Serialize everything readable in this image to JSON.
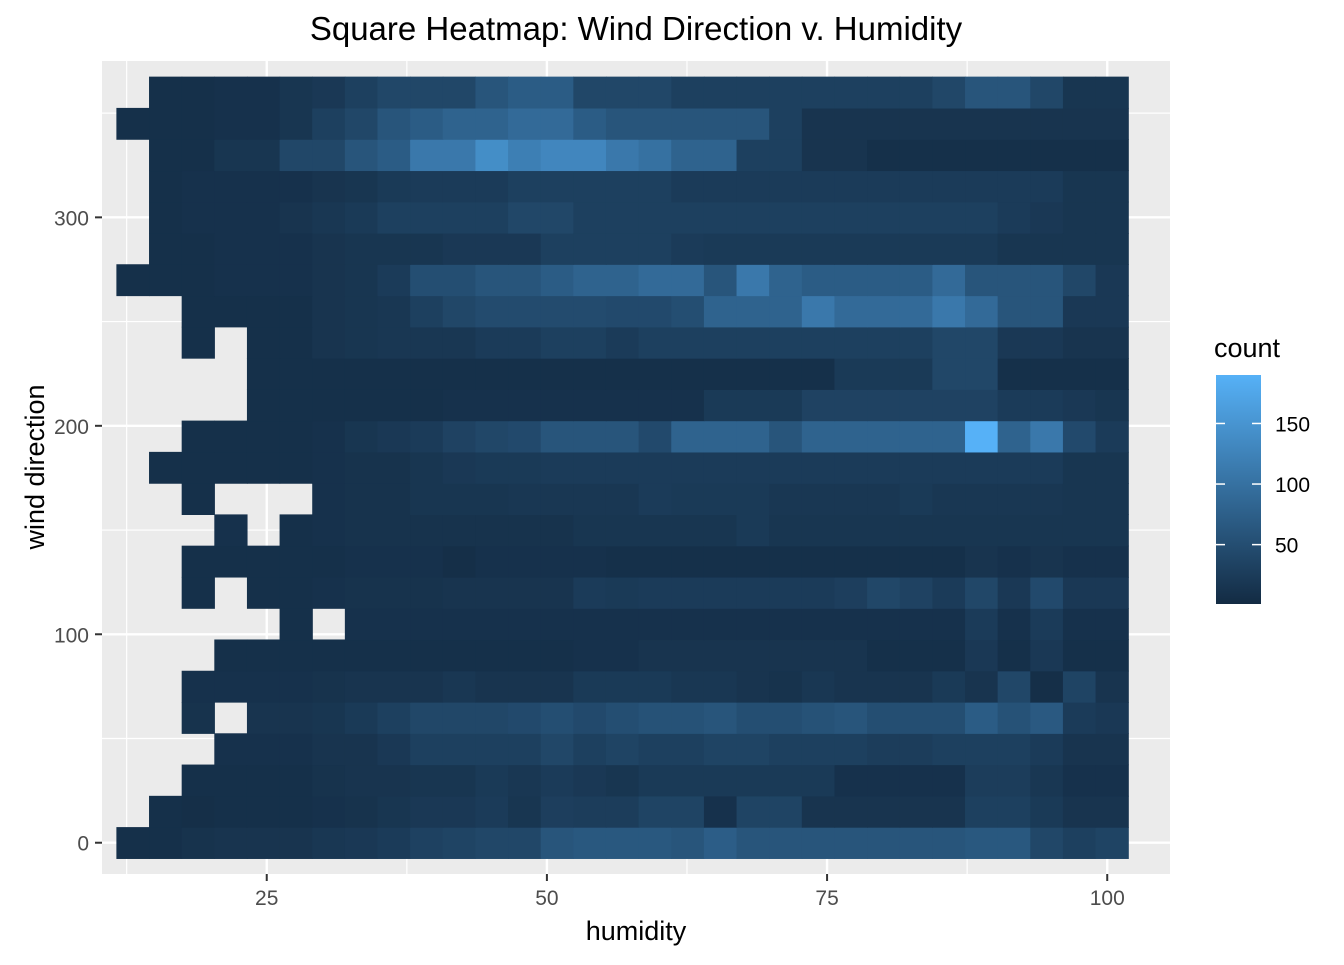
{
  "chart_data": {
    "type": "heatmap",
    "title": "Square Heatmap: Wind Direction v. Humidity",
    "xlabel": "humidity",
    "ylabel": "wind direction",
    "x_ticks": [
      25,
      50,
      75,
      100
    ],
    "y_ticks": [
      0,
      100,
      200,
      300
    ],
    "xlim": [
      10.3,
      105.6
    ],
    "ylim": [
      -15,
      375
    ],
    "x_bins": {
      "first_center": 13.04,
      "width": 2.9125,
      "count": 31
    },
    "y_bins": {
      "first_center": 0,
      "width": 15,
      "count": 25
    },
    "legend": {
      "title": "count",
      "ticks": [
        50,
        100,
        150
      ],
      "range": [
        1,
        190
      ],
      "low_color": "#132B43",
      "high_color": "#56B1F7",
      "position": "right"
    },
    "grid": true,
    "panel_background": "#EBEBEB",
    "rows": [
      [
        8,
        8,
        12,
        14,
        14,
        14,
        18,
        20,
        24,
        32,
        36,
        40,
        40,
        60,
        64,
        64,
        64,
        60,
        72,
        60,
        60,
        60,
        60,
        60,
        60,
        60,
        64,
        64,
        40,
        30,
        36
      ],
      [
        null,
        8,
        6,
        8,
        8,
        8,
        10,
        12,
        16,
        20,
        20,
        24,
        16,
        28,
        26,
        26,
        36,
        36,
        10,
        36,
        36,
        14,
        14,
        14,
        14,
        14,
        30,
        30,
        22,
        14,
        14
      ],
      [
        null,
        null,
        8,
        8,
        8,
        8,
        12,
        14,
        14,
        16,
        16,
        22,
        18,
        24,
        20,
        16,
        22,
        22,
        22,
        22,
        22,
        22,
        10,
        10,
        10,
        10,
        26,
        26,
        18,
        10,
        10
      ],
      [
        null,
        null,
        null,
        10,
        10,
        10,
        14,
        14,
        20,
        30,
        30,
        30,
        30,
        40,
        30,
        36,
        30,
        30,
        36,
        36,
        30,
        30,
        30,
        26,
        26,
        30,
        30,
        30,
        24,
        14,
        14
      ],
      [
        null,
        null,
        12,
        null,
        14,
        14,
        16,
        22,
        30,
        40,
        40,
        40,
        44,
        50,
        44,
        50,
        56,
        56,
        60,
        50,
        50,
        56,
        60,
        50,
        50,
        50,
        70,
        56,
        66,
        24,
        20
      ],
      [
        null,
        null,
        10,
        10,
        10,
        10,
        12,
        14,
        14,
        14,
        18,
        14,
        14,
        14,
        22,
        22,
        22,
        18,
        18,
        14,
        12,
        18,
        14,
        14,
        14,
        22,
        14,
        40,
        6,
        36,
        14
      ],
      [
        null,
        null,
        null,
        8,
        8,
        8,
        8,
        8,
        8,
        8,
        8,
        8,
        8,
        8,
        10,
        10,
        14,
        14,
        14,
        14,
        14,
        14,
        14,
        8,
        8,
        8,
        20,
        8,
        20,
        8,
        8
      ],
      [
        null,
        null,
        null,
        null,
        null,
        8,
        null,
        10,
        10,
        10,
        10,
        10,
        10,
        10,
        10,
        10,
        10,
        10,
        10,
        10,
        10,
        10,
        10,
        10,
        10,
        10,
        24,
        10,
        24,
        10,
        10
      ],
      [
        null,
        null,
        8,
        null,
        8,
        8,
        10,
        12,
        12,
        12,
        14,
        14,
        14,
        14,
        24,
        22,
        24,
        24,
        24,
        24,
        24,
        24,
        28,
        40,
        34,
        24,
        40,
        20,
        44,
        20,
        20
      ],
      [
        null,
        null,
        8,
        8,
        8,
        8,
        8,
        10,
        10,
        10,
        6,
        10,
        10,
        10,
        10,
        8,
        8,
        8,
        8,
        8,
        8,
        8,
        8,
        8,
        8,
        8,
        14,
        10,
        14,
        10,
        10
      ],
      [
        null,
        null,
        null,
        10,
        null,
        8,
        10,
        12,
        12,
        12,
        12,
        12,
        12,
        12,
        16,
        16,
        16,
        16,
        16,
        22,
        16,
        16,
        16,
        16,
        16,
        16,
        16,
        16,
        16,
        16,
        16
      ],
      [
        null,
        null,
        8,
        null,
        null,
        null,
        10,
        12,
        12,
        16,
        16,
        16,
        18,
        18,
        18,
        18,
        24,
        22,
        22,
        22,
        18,
        18,
        18,
        18,
        22,
        18,
        18,
        18,
        18,
        16,
        16
      ],
      [
        null,
        8,
        8,
        8,
        8,
        8,
        10,
        12,
        12,
        16,
        20,
        22,
        22,
        24,
        24,
        24,
        24,
        24,
        24,
        24,
        24,
        24,
        24,
        24,
        24,
        24,
        24,
        24,
        24,
        16,
        16
      ],
      [
        null,
        null,
        8,
        8,
        8,
        8,
        10,
        16,
        20,
        24,
        34,
        40,
        44,
        60,
        60,
        60,
        44,
        80,
        80,
        80,
        60,
        80,
        80,
        80,
        80,
        80,
        190,
        80,
        110,
        44,
        24
      ],
      [
        null,
        null,
        null,
        null,
        8,
        8,
        8,
        8,
        8,
        8,
        10,
        10,
        10,
        10,
        10,
        10,
        10,
        10,
        22,
        22,
        22,
        34,
        34,
        34,
        34,
        34,
        34,
        24,
        24,
        20,
        16
      ],
      [
        null,
        null,
        null,
        null,
        8,
        8,
        8,
        8,
        8,
        8,
        8,
        8,
        8,
        8,
        8,
        8,
        8,
        8,
        8,
        8,
        8,
        8,
        22,
        22,
        22,
        40,
        40,
        8,
        8,
        8,
        8
      ],
      [
        null,
        null,
        8,
        null,
        8,
        8,
        14,
        16,
        18,
        18,
        18,
        24,
        24,
        30,
        30,
        24,
        30,
        30,
        30,
        30,
        30,
        30,
        30,
        30,
        30,
        40,
        40,
        20,
        20,
        14,
        14
      ],
      [
        null,
        null,
        8,
        8,
        8,
        8,
        14,
        16,
        18,
        30,
        40,
        46,
        46,
        46,
        46,
        44,
        44,
        50,
        80,
        80,
        80,
        110,
        90,
        90,
        90,
        110,
        90,
        60,
        60,
        20,
        20
      ],
      [
        8,
        8,
        8,
        10,
        10,
        10,
        14,
        16,
        24,
        50,
        50,
        60,
        60,
        70,
        80,
        80,
        90,
        90,
        60,
        110,
        80,
        70,
        70,
        70,
        70,
        90,
        60,
        60,
        60,
        40,
        20
      ],
      [
        null,
        8,
        8,
        10,
        10,
        10,
        14,
        16,
        16,
        16,
        20,
        20,
        20,
        30,
        30,
        30,
        30,
        24,
        22,
        22,
        22,
        22,
        22,
        22,
        22,
        22,
        22,
        16,
        16,
        16,
        16
      ],
      [
        null,
        8,
        10,
        10,
        10,
        14,
        18,
        22,
        30,
        30,
        30,
        30,
        40,
        40,
        30,
        30,
        30,
        30,
        30,
        30,
        30,
        30,
        30,
        30,
        30,
        30,
        30,
        24,
        20,
        16,
        16
      ],
      [
        null,
        8,
        10,
        10,
        10,
        10,
        14,
        16,
        22,
        24,
        24,
        24,
        30,
        30,
        30,
        30,
        30,
        24,
        24,
        24,
        24,
        24,
        24,
        24,
        24,
        24,
        24,
        24,
        24,
        16,
        16
      ],
      [
        null,
        8,
        8,
        16,
        16,
        40,
        40,
        60,
        70,
        110,
        110,
        140,
        120,
        130,
        130,
        110,
        100,
        80,
        80,
        30,
        30,
        14,
        14,
        8,
        8,
        8,
        8,
        8,
        8,
        8,
        8
      ],
      [
        8,
        8,
        8,
        10,
        10,
        16,
        30,
        40,
        60,
        70,
        80,
        80,
        90,
        90,
        70,
        60,
        60,
        60,
        60,
        60,
        30,
        14,
        14,
        14,
        14,
        14,
        14,
        14,
        14,
        14,
        14
      ],
      [
        null,
        8,
        8,
        10,
        10,
        16,
        20,
        30,
        40,
        40,
        40,
        60,
        70,
        70,
        40,
        40,
        40,
        30,
        30,
        30,
        30,
        30,
        30,
        30,
        30,
        40,
        60,
        60,
        40,
        16,
        16
      ]
    ]
  }
}
